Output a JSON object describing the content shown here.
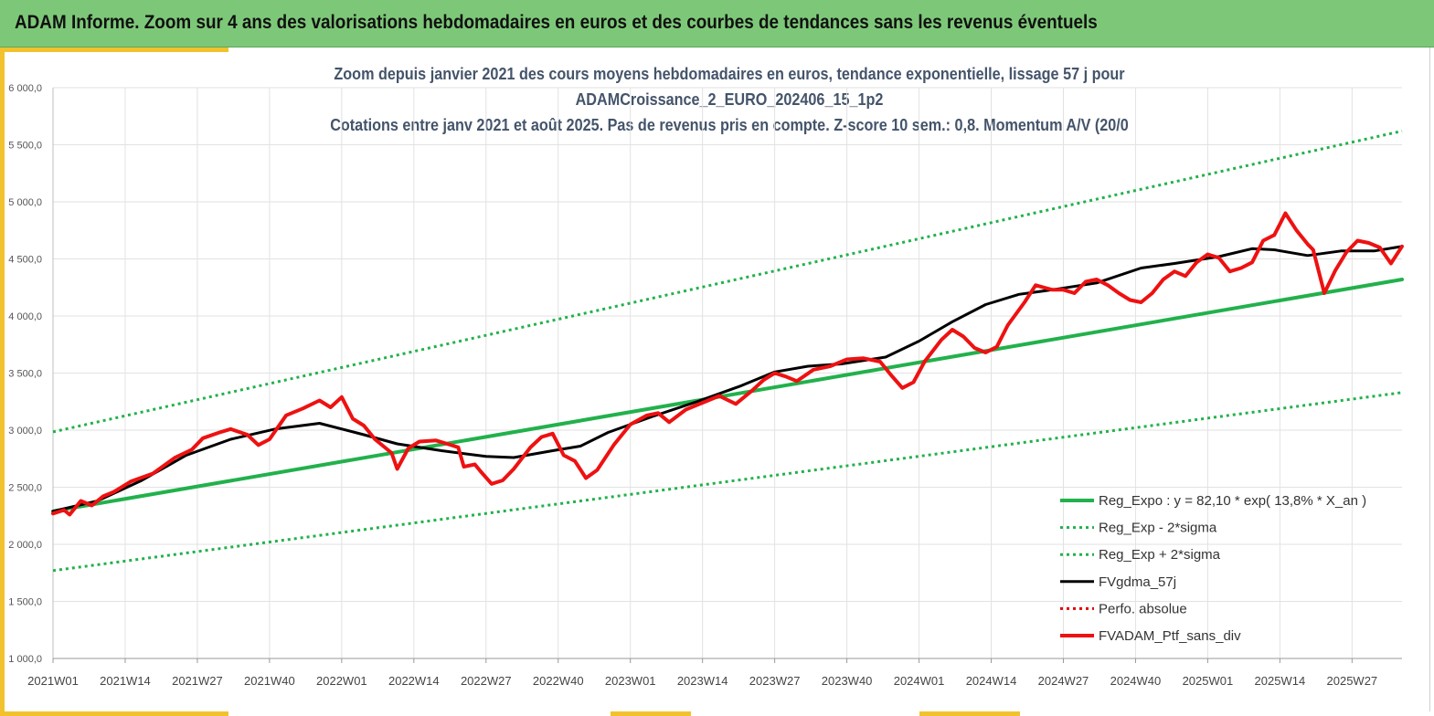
{
  "banner": {
    "title": "ADAM Informe. Zoom sur 4 ans des valorisations hebdomadaires en euros et des courbes de tendances sans les revenus éventuels",
    "color": "#7dc878"
  },
  "chart_data": {
    "type": "line",
    "title_lines": [
      "Zoom depuis janvier 2021 des cours moyens hebdomadaires  en euros, tendance exponentielle, lissage 57 j pour",
      "ADAMCroissance_2_EURO_202406_15_1p2",
      "Cotations entre janv 2021 et août 2025. Pas de revenus pris en compte. Z-score 10 sem.: 0,8. Momentum A/V (20/0"
    ],
    "x_weeks": [
      0,
      243
    ],
    "x_ticks": [
      {
        "label": "2021W01",
        "week": 0
      },
      {
        "label": "2021W14",
        "week": 13
      },
      {
        "label": "2021W27",
        "week": 26
      },
      {
        "label": "2021W40",
        "week": 39
      },
      {
        "label": "2022W01",
        "week": 52
      },
      {
        "label": "2022W14",
        "week": 65
      },
      {
        "label": "2022W27",
        "week": 78
      },
      {
        "label": "2022W40",
        "week": 91
      },
      {
        "label": "2023W01",
        "week": 104
      },
      {
        "label": "2023W14",
        "week": 117
      },
      {
        "label": "2023W27",
        "week": 130
      },
      {
        "label": "2023W40",
        "week": 143
      },
      {
        "label": "2024W01",
        "week": 156
      },
      {
        "label": "2024W14",
        "week": 169
      },
      {
        "label": "2024W27",
        "week": 182
      },
      {
        "label": "2024W40",
        "week": 195
      },
      {
        "label": "2025W01",
        "week": 208
      },
      {
        "label": "2025W14",
        "week": 221
      },
      {
        "label": "2025W27",
        "week": 234
      }
    ],
    "ylim": [
      1000,
      6000
    ],
    "y_ticks": [
      {
        "label": "1 000,0",
        "value": 1000
      },
      {
        "label": "1 500,0",
        "value": 1500
      },
      {
        "label": "2 000,0",
        "value": 2000
      },
      {
        "label": "2 500,0",
        "value": 2500
      },
      {
        "label": "3 000,0",
        "value": 3000
      },
      {
        "label": "3 500,0",
        "value": 3500
      },
      {
        "label": "4 000,0",
        "value": 4000
      },
      {
        "label": "4 500,0",
        "value": 4500
      },
      {
        "label": "5 000,0",
        "value": 5000
      },
      {
        "label": "5 500,0",
        "value": 5500
      },
      {
        "label": "6 000,0",
        "value": 6000
      }
    ],
    "grid": true,
    "legend_position": "bottom-right",
    "series": [
      {
        "name": "Reg_Expo : y = 82,10 * exp( 13,8% *  X_an )",
        "style": "solid",
        "color": "#22b14c",
        "width": 4,
        "points": [
          [
            0,
            2290
          ],
          [
            243,
            4320
          ]
        ]
      },
      {
        "name": "Reg_Exp - 2*sigma",
        "style": "dotted",
        "color": "#22b14c",
        "width": 3,
        "points": [
          [
            0,
            1770
          ],
          [
            243,
            3330
          ]
        ]
      },
      {
        "name": "Reg_Exp + 2*sigma",
        "style": "dotted",
        "color": "#22b14c",
        "width": 3,
        "points": [
          [
            0,
            2985
          ],
          [
            243,
            5620
          ]
        ]
      },
      {
        "name": "FVgdma_57j",
        "style": "solid",
        "color": "#000000",
        "width": 3,
        "points": [
          [
            0,
            2290
          ],
          [
            8,
            2380
          ],
          [
            16,
            2560
          ],
          [
            24,
            2780
          ],
          [
            32,
            2920
          ],
          [
            40,
            3010
          ],
          [
            48,
            3060
          ],
          [
            56,
            2960
          ],
          [
            62,
            2880
          ],
          [
            70,
            2820
          ],
          [
            78,
            2770
          ],
          [
            83,
            2760
          ],
          [
            90,
            2820
          ],
          [
            95,
            2860
          ],
          [
            100,
            2980
          ],
          [
            108,
            3120
          ],
          [
            116,
            3250
          ],
          [
            124,
            3390
          ],
          [
            130,
            3510
          ],
          [
            136,
            3560
          ],
          [
            142,
            3580
          ],
          [
            150,
            3640
          ],
          [
            156,
            3780
          ],
          [
            162,
            3950
          ],
          [
            168,
            4100
          ],
          [
            174,
            4190
          ],
          [
            180,
            4230
          ],
          [
            188,
            4290
          ],
          [
            196,
            4420
          ],
          [
            202,
            4460
          ],
          [
            210,
            4520
          ],
          [
            216,
            4590
          ],
          [
            220,
            4580
          ],
          [
            226,
            4530
          ],
          [
            232,
            4570
          ],
          [
            238,
            4570
          ],
          [
            243,
            4610
          ]
        ]
      },
      {
        "name": "Perfo. absolue",
        "style": "dotted",
        "color": "#e00000",
        "width": 3,
        "points": []
      },
      {
        "name": "FVADAM_Ptf_sans_div",
        "style": "solid",
        "color": "#ee1111",
        "width": 4,
        "points": [
          [
            0,
            2270
          ],
          [
            2,
            2300
          ],
          [
            3,
            2260
          ],
          [
            5,
            2380
          ],
          [
            7,
            2340
          ],
          [
            9,
            2420
          ],
          [
            11,
            2460
          ],
          [
            14,
            2550
          ],
          [
            18,
            2620
          ],
          [
            22,
            2760
          ],
          [
            25,
            2830
          ],
          [
            27,
            2930
          ],
          [
            30,
            2980
          ],
          [
            32,
            3010
          ],
          [
            35,
            2960
          ],
          [
            37,
            2870
          ],
          [
            39,
            2920
          ],
          [
            42,
            3130
          ],
          [
            45,
            3190
          ],
          [
            48,
            3260
          ],
          [
            50,
            3200
          ],
          [
            52,
            3290
          ],
          [
            54,
            3100
          ],
          [
            56,
            3040
          ],
          [
            58,
            2920
          ],
          [
            61,
            2800
          ],
          [
            62,
            2660
          ],
          [
            64,
            2840
          ],
          [
            66,
            2900
          ],
          [
            69,
            2910
          ],
          [
            71,
            2880
          ],
          [
            73,
            2850
          ],
          [
            74,
            2680
          ],
          [
            76,
            2700
          ],
          [
            77,
            2640
          ],
          [
            79,
            2530
          ],
          [
            81,
            2560
          ],
          [
            83,
            2660
          ],
          [
            86,
            2850
          ],
          [
            88,
            2940
          ],
          [
            90,
            2970
          ],
          [
            92,
            2780
          ],
          [
            94,
            2730
          ],
          [
            96,
            2580
          ],
          [
            98,
            2650
          ],
          [
            101,
            2870
          ],
          [
            104,
            3050
          ],
          [
            107,
            3130
          ],
          [
            109,
            3150
          ],
          [
            111,
            3070
          ],
          [
            114,
            3180
          ],
          [
            117,
            3240
          ],
          [
            120,
            3300
          ],
          [
            123,
            3230
          ],
          [
            126,
            3350
          ],
          [
            128,
            3440
          ],
          [
            130,
            3500
          ],
          [
            132,
            3470
          ],
          [
            134,
            3430
          ],
          [
            137,
            3530
          ],
          [
            140,
            3560
          ],
          [
            143,
            3620
          ],
          [
            146,
            3630
          ],
          [
            149,
            3600
          ],
          [
            151,
            3480
          ],
          [
            153,
            3370
          ],
          [
            155,
            3420
          ],
          [
            157,
            3600
          ],
          [
            160,
            3790
          ],
          [
            162,
            3880
          ],
          [
            164,
            3820
          ],
          [
            166,
            3720
          ],
          [
            168,
            3680
          ],
          [
            170,
            3730
          ],
          [
            172,
            3920
          ],
          [
            175,
            4120
          ],
          [
            177,
            4270
          ],
          [
            180,
            4230
          ],
          [
            182,
            4230
          ],
          [
            184,
            4200
          ],
          [
            186,
            4300
          ],
          [
            188,
            4320
          ],
          [
            190,
            4270
          ],
          [
            192,
            4200
          ],
          [
            194,
            4140
          ],
          [
            196,
            4120
          ],
          [
            198,
            4200
          ],
          [
            200,
            4320
          ],
          [
            202,
            4390
          ],
          [
            204,
            4350
          ],
          [
            206,
            4470
          ],
          [
            208,
            4540
          ],
          [
            210,
            4510
          ],
          [
            212,
            4390
          ],
          [
            214,
            4420
          ],
          [
            216,
            4470
          ],
          [
            218,
            4660
          ],
          [
            220,
            4710
          ],
          [
            222,
            4900
          ],
          [
            224,
            4750
          ],
          [
            226,
            4630
          ],
          [
            227,
            4580
          ],
          [
            229,
            4200
          ],
          [
            231,
            4400
          ],
          [
            233,
            4560
          ],
          [
            235,
            4660
          ],
          [
            237,
            4640
          ],
          [
            239,
            4600
          ],
          [
            241,
            4460
          ],
          [
            243,
            4610
          ]
        ]
      }
    ]
  }
}
